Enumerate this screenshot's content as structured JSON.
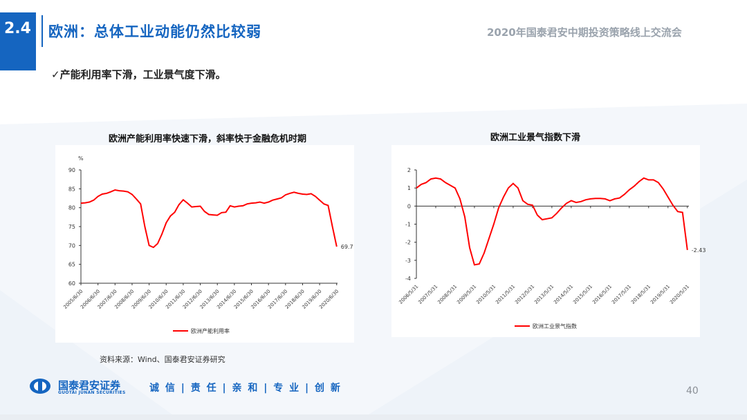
{
  "header": {
    "section_number": "2.4",
    "title": "欧洲：总体工业动能仍然比较弱",
    "event": "2020年国泰君安中期投资策略线上交流会"
  },
  "bullet": {
    "check": "✓",
    "text": "产能利用率下滑，工业景气度下滑。"
  },
  "charts": {
    "left": {
      "title": "欧洲产能利用率快速下滑，斜率快于金融危机时期",
      "unit": "%",
      "legend": "欧洲产能利用率",
      "end_label": "69.7",
      "y_ticks": [
        "90",
        "85",
        "80",
        "75",
        "70",
        "65",
        "60"
      ],
      "x_labels": [
        "2005/6/30",
        "2006/6/30",
        "2007/6/30",
        "2008/6/30",
        "2009/6/30",
        "2010/6/30",
        "2011/6/30",
        "2012/6/30",
        "2013/6/30",
        "2014/6/30",
        "2015/6/30",
        "2016/6/30",
        "2017/6/30",
        "2018/6/30",
        "2019/6/30",
        "2020/6/30"
      ]
    },
    "right": {
      "title": "欧洲工业景气指数下滑",
      "legend": "欧洲工业景气指数",
      "end_label": "-2.43",
      "y_ticks": [
        "2",
        "1",
        "0",
        "-1",
        "-2",
        "-3",
        "-4"
      ],
      "x_labels": [
        "2006/5/31",
        "2007/5/31",
        "2008/5/31",
        "2009/5/31",
        "2010/5/31",
        "2011/5/31",
        "2012/5/31",
        "2013/5/31",
        "2014/5/31",
        "2015/5/31",
        "2016/5/31",
        "2017/5/31",
        "2018/5/31",
        "2019/5/31",
        "2020/5/31"
      ]
    }
  },
  "chart_data": [
    {
      "type": "line",
      "title": "欧洲产能利用率快速下滑，斜率快于金融危机时期",
      "ylabel": "%",
      "ylim": [
        60,
        90
      ],
      "series": [
        {
          "name": "欧洲产能利用率",
          "x": [
            2005.5,
            2005.75,
            2006.0,
            2006.25,
            2006.5,
            2006.75,
            2007.0,
            2007.25,
            2007.5,
            2007.75,
            2008.0,
            2008.25,
            2008.5,
            2008.75,
            2009.0,
            2009.25,
            2009.5,
            2009.75,
            2010.0,
            2010.25,
            2010.5,
            2010.75,
            2011.0,
            2011.25,
            2011.5,
            2011.75,
            2012.0,
            2012.25,
            2012.5,
            2012.75,
            2013.0,
            2013.25,
            2013.5,
            2013.75,
            2014.0,
            2014.25,
            2014.5,
            2014.75,
            2015.0,
            2015.25,
            2015.5,
            2015.75,
            2016.0,
            2016.25,
            2016.5,
            2016.75,
            2017.0,
            2017.25,
            2017.5,
            2017.75,
            2018.0,
            2018.25,
            2018.5,
            2018.75,
            2019.0,
            2019.25,
            2019.5,
            2019.75,
            2020.0,
            2020.25,
            2020.5
          ],
          "values": [
            81.2,
            81.3,
            81.5,
            82.0,
            83.0,
            83.6,
            83.8,
            84.2,
            84.7,
            84.5,
            84.4,
            84.2,
            83.5,
            82.3,
            81.0,
            75.0,
            70.0,
            69.5,
            70.5,
            73.0,
            76.0,
            77.8,
            78.8,
            80.8,
            82.1,
            81.2,
            80.2,
            80.3,
            80.4,
            79.0,
            78.2,
            78.1,
            78.0,
            78.7,
            78.8,
            80.5,
            80.2,
            80.4,
            80.5,
            81.0,
            81.2,
            81.3,
            81.5,
            81.2,
            81.5,
            82.0,
            82.3,
            82.6,
            83.4,
            83.8,
            84.1,
            83.8,
            83.6,
            83.5,
            83.7,
            83.0,
            82.0,
            81.0,
            80.6,
            75.0,
            69.7
          ]
        }
      ]
    },
    {
      "type": "line",
      "title": "欧洲工业景气指数下滑",
      "ylim": [
        -4,
        2
      ],
      "series": [
        {
          "name": "欧洲工业景气指数",
          "x": [
            2006.42,
            2006.67,
            2006.92,
            2007.17,
            2007.42,
            2007.67,
            2007.92,
            2008.17,
            2008.42,
            2008.67,
            2008.92,
            2009.17,
            2009.42,
            2009.67,
            2009.92,
            2010.17,
            2010.42,
            2010.67,
            2010.92,
            2011.17,
            2011.42,
            2011.67,
            2011.92,
            2012.17,
            2012.42,
            2012.67,
            2012.92,
            2013.17,
            2013.42,
            2013.67,
            2013.92,
            2014.17,
            2014.42,
            2014.67,
            2014.92,
            2015.17,
            2015.42,
            2015.67,
            2015.92,
            2016.17,
            2016.42,
            2016.67,
            2016.92,
            2017.17,
            2017.42,
            2017.67,
            2017.92,
            2018.17,
            2018.42,
            2018.67,
            2018.92,
            2019.17,
            2019.42,
            2019.67,
            2019.92,
            2020.17,
            2020.42
          ],
          "values": [
            1.0,
            1.2,
            1.3,
            1.5,
            1.55,
            1.5,
            1.3,
            1.15,
            1.0,
            0.4,
            -0.6,
            -2.3,
            -3.25,
            -3.2,
            -2.6,
            -1.8,
            -1.0,
            -0.1,
            0.5,
            1.0,
            1.25,
            1.0,
            0.3,
            0.1,
            0.05,
            -0.5,
            -0.75,
            -0.7,
            -0.65,
            -0.4,
            -0.1,
            0.15,
            0.3,
            0.2,
            0.25,
            0.35,
            0.4,
            0.42,
            0.42,
            0.4,
            0.3,
            0.4,
            0.45,
            0.65,
            0.9,
            1.1,
            1.35,
            1.55,
            1.45,
            1.45,
            1.3,
            0.95,
            0.5,
            0.05,
            -0.3,
            -0.35,
            -2.43
          ]
        }
      ]
    }
  ],
  "footer": {
    "source": "资料来源：Wind、国泰君安证券研究",
    "logo_cn": "国泰君安证券",
    "logo_en": "GUOTAI JUNAN SECURITIES",
    "slogan": "诚 信 | 责 任 | 亲 和 | 专 业 | 创 新",
    "page_number": "40"
  },
  "colors": {
    "brand": "#1565c0",
    "series": "#ff0000"
  }
}
